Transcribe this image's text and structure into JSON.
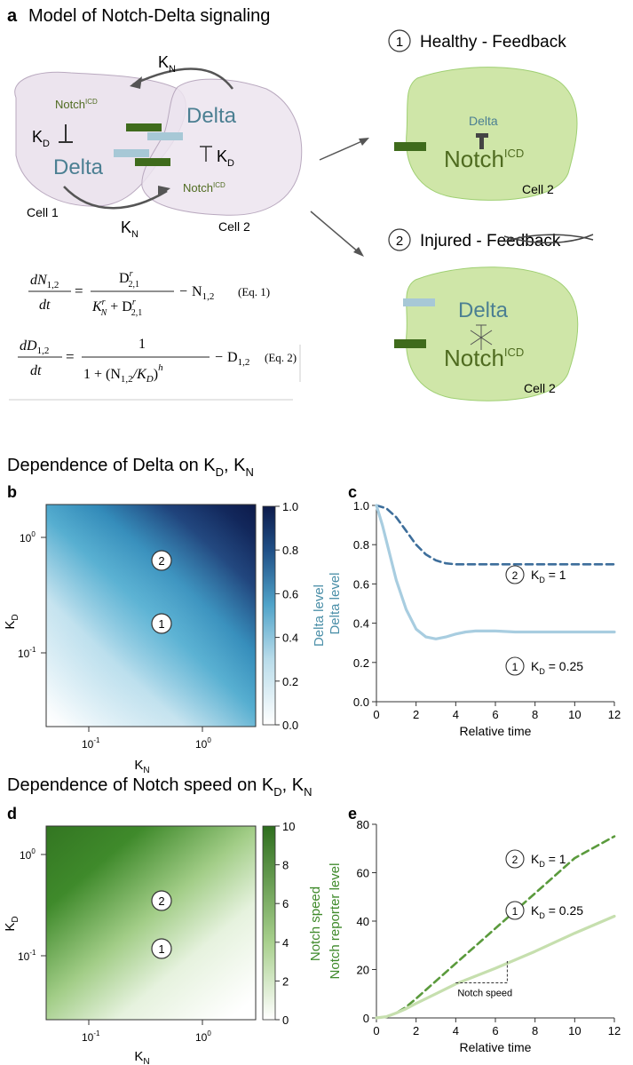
{
  "colors": {
    "cell_fill": "#ece4ee",
    "cell_stroke": "#b9a9bf",
    "green_cell": "#cfe6a8",
    "green_cell_stroke": "#9fcf72",
    "delta_blue": "#4b7f92",
    "notch_green": "#4f6b20",
    "bar_dark_green": "#3f6b1c",
    "bar_light_blue": "#a7c8d6",
    "curve_light_blue": "#a8cde0",
    "curve_dark_blue": "#3d6e9b",
    "curve_light_green": "#c6dfae",
    "curve_dark_green": "#5a9a3c",
    "heat_blue_dark": "#0d1b4b",
    "heat_green_dark": "#2e6e1e"
  },
  "panel_a": {
    "label": "a",
    "title": "Model of Notch-Delta signaling",
    "notch_text": "Notch",
    "icd_text": "ICD",
    "delta_text": "Delta",
    "K_text": "K",
    "N_sub": "N",
    "D_sub": "D",
    "cell1_label": "Cell 1",
    "cell2_label": "Cell 2",
    "healthy_num": "1",
    "healthy_title": "Healthy - Feedback",
    "injured_num": "2",
    "injured_title_prefix": "Injured - ",
    "injured_struck": "Feedback",
    "eq1": {
      "lhs_num": "dN",
      "lhs_sub": "1,2",
      "lhs_den": "dt",
      "num": "D",
      "num_sup": "r",
      "num_sub": "2,1",
      "den_a": "K",
      "den_a_sup": "r",
      "den_a_sub": "N",
      "den_plus": "+",
      "den_b": "D",
      "den_b_sup": "r",
      "den_b_sub": "2,1",
      "minus": "−",
      "tail": "N",
      "tail_sub": "1,2",
      "tag": "(Eq. 1)"
    },
    "eq2": {
      "lhs_num": "dD",
      "lhs_sub": "1,2",
      "lhs_den": "dt",
      "num": "1",
      "den_one": "1 +",
      "den_inner": "(N",
      "den_inner_sub": "1,2",
      "den_slash": "/K",
      "den_slash_sub": "D",
      "den_close": ")",
      "den_sup": "h",
      "minus": "−",
      "tail": "D",
      "tail_sub": "1,2",
      "tag": "(Eq. 2)"
    }
  },
  "section_delta": {
    "title": "Dependence of Delta on K",
    "sub_d": "D",
    "sep": ", K",
    "sub_n": "N"
  },
  "section_notch": {
    "title": "Dependence of Notch speed on K",
    "sub_d": "D",
    "sep": ", K",
    "sub_n": "N"
  },
  "heatmap_b": {
    "label": "b",
    "x_label": "K",
    "x_sub": "N",
    "y_label": "K",
    "y_sub": "D",
    "x_ticks": [
      {
        "text": "10",
        "sup": "-1"
      },
      {
        "text": "10",
        "sup": "0"
      }
    ],
    "y_ticks": [
      {
        "text": "10",
        "sup": "0"
      },
      {
        "text": "10",
        "sup": "-1"
      }
    ],
    "cbar_label": "Delta level",
    "cbar_ticks": [
      "1.0",
      "0.8",
      "0.6",
      "0.4",
      "0.2",
      "0.0"
    ],
    "markers": [
      "2",
      "1"
    ]
  },
  "heatmap_d": {
    "label": "d",
    "x_label": "K",
    "x_sub": "N",
    "y_label": "K",
    "y_sub": "D",
    "x_ticks": [
      {
        "text": "10",
        "sup": "-1"
      },
      {
        "text": "10",
        "sup": "0"
      }
    ],
    "y_ticks": [
      {
        "text": "10",
        "sup": "0"
      },
      {
        "text": "10",
        "sup": "-1"
      }
    ],
    "cbar_label": "Notch speed",
    "cbar_ticks": [
      "10",
      "8",
      "6",
      "4",
      "2",
      "0"
    ],
    "markers": [
      "2",
      "1"
    ]
  },
  "chart_data": [
    {
      "type": "line",
      "panel": "c",
      "xlabel": "Relative time",
      "ylabel": "Delta level",
      "xlim": [
        0,
        12
      ],
      "ylim": [
        0,
        1.0
      ],
      "x_ticks": [
        0,
        2,
        4,
        6,
        8,
        10,
        12
      ],
      "y_ticks": [
        "0.0",
        "0.2",
        "0.4",
        "0.6",
        "0.8",
        "1.0"
      ],
      "series": [
        {
          "name": "KD = 1",
          "annotation": {
            "num": "2",
            "text": "K",
            "sub": "D",
            "value": " = 1"
          },
          "style": "dashed",
          "x": [
            0,
            0.5,
            1,
            1.5,
            2,
            2.5,
            3,
            3.5,
            4,
            4.5,
            5,
            6,
            8,
            10,
            12
          ],
          "y": [
            1.0,
            0.985,
            0.94,
            0.87,
            0.8,
            0.75,
            0.72,
            0.705,
            0.7,
            0.7,
            0.7,
            0.7,
            0.7,
            0.7,
            0.7
          ]
        },
        {
          "name": "KD = 0.25",
          "annotation": {
            "num": "1",
            "text": "K",
            "sub": "D",
            "value": " = 0.25"
          },
          "style": "solid",
          "x": [
            0,
            0.3,
            0.6,
            1,
            1.5,
            2,
            2.5,
            3,
            3.5,
            4,
            4.5,
            5,
            6,
            7,
            8,
            10,
            12
          ],
          "y": [
            1.0,
            0.9,
            0.78,
            0.62,
            0.47,
            0.37,
            0.33,
            0.32,
            0.33,
            0.345,
            0.355,
            0.36,
            0.36,
            0.355,
            0.355,
            0.355,
            0.355
          ]
        }
      ]
    },
    {
      "type": "line",
      "panel": "e",
      "xlabel": "Relative time",
      "ylabel": "Notch reporter level",
      "xlim": [
        0,
        12
      ],
      "ylim": [
        0,
        80
      ],
      "x_ticks": [
        0,
        2,
        4,
        6,
        8,
        10,
        12
      ],
      "y_ticks": [
        "0",
        "20",
        "40",
        "60",
        "80"
      ],
      "annotation_text": "Notch speed",
      "series": [
        {
          "name": "KD = 1",
          "annotation": {
            "num": "2",
            "text": "K",
            "sub": "D",
            "value": " = 1"
          },
          "style": "dashed",
          "x": [
            0,
            0.5,
            1,
            1.5,
            2,
            4,
            6,
            8,
            10,
            12
          ],
          "y": [
            0,
            0.5,
            2,
            4.5,
            8,
            22.5,
            37,
            51.5,
            66,
            75
          ]
        },
        {
          "name": "KD = 0.25",
          "annotation": {
            "num": "1",
            "text": "K",
            "sub": "D",
            "value": " = 0.25"
          },
          "style": "solid",
          "x": [
            0,
            0.5,
            1,
            1.5,
            2,
            3,
            4,
            6,
            8,
            10,
            12
          ],
          "y": [
            0,
            0.5,
            2,
            3.8,
            6,
            10,
            14,
            20.5,
            27.5,
            35,
            42
          ]
        }
      ]
    }
  ]
}
